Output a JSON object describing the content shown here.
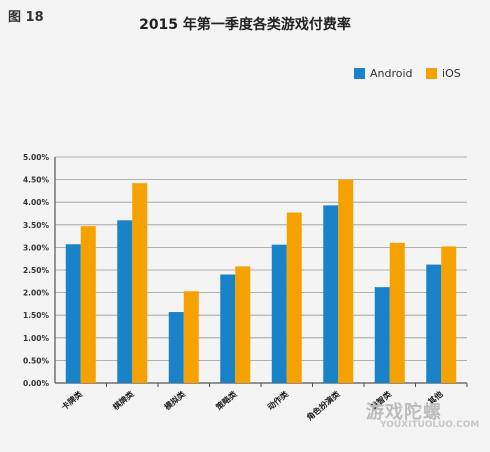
{
  "figure_label": "图 18",
  "watermark": {
    "text": "游戏陀螺",
    "sub": "YOUXITUOLUO.COM"
  },
  "colors": {
    "android": "#1a83c8",
    "ios": "#f5a100",
    "grid": "#9a9a9a",
    "axis": "#555555"
  },
  "chart_data": {
    "type": "bar",
    "title": "2015 年第一季度各类游戏付费率",
    "xlabel": "",
    "ylabel": "",
    "ylim": [
      0,
      5
    ],
    "yticks": [
      "0.00%",
      "0.50%",
      "1.00%",
      "1.50%",
      "2.00%",
      "2.50%",
      "3.00%",
      "3.50%",
      "4.00%",
      "4.50%",
      "5.00%"
    ],
    "categories": [
      "卡牌类",
      "棋牌类",
      "模拟类",
      "策略类",
      "动作类",
      "角色扮演类",
      "益智类",
      "其他"
    ],
    "series": [
      {
        "name": "Android",
        "values": [
          3.07,
          3.6,
          1.57,
          2.4,
          3.06,
          3.93,
          2.12,
          2.62
        ]
      },
      {
        "name": "iOS",
        "values": [
          3.47,
          4.42,
          2.03,
          2.58,
          3.77,
          4.5,
          3.1,
          3.02
        ]
      }
    ],
    "grid": true,
    "legend_position": "top-right"
  }
}
